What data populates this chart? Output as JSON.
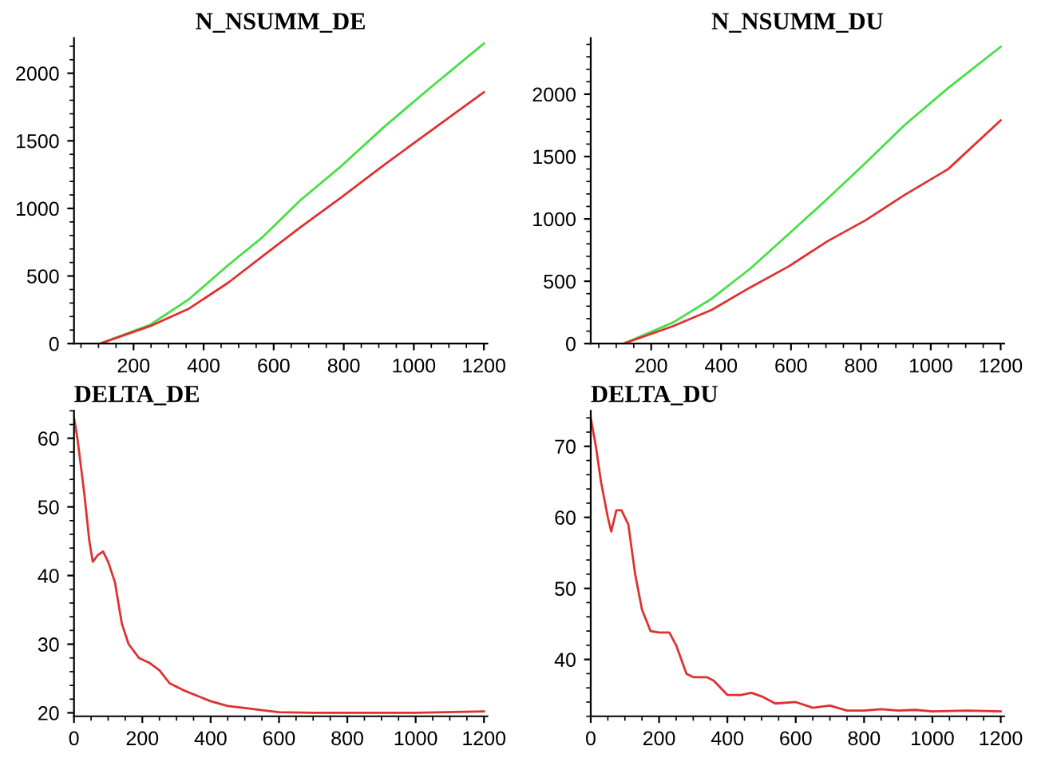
{
  "chart_data": [
    {
      "type": "line",
      "title": "N_NSUMM_DE",
      "xlim": [
        30,
        1210
      ],
      "ylim": [
        0,
        2260
      ],
      "xticks": [
        200,
        400,
        600,
        800,
        1000,
        1200
      ],
      "yticks": [
        0,
        500,
        1000,
        1500,
        2000
      ],
      "grid": false,
      "legend": false,
      "x": [
        105,
        248,
        359,
        470,
        565,
        676,
        787,
        914,
        1041,
        1200
      ],
      "series": [
        {
          "color": "#44e044",
          "values": [
            0,
            140,
            330,
            580,
            780,
            1060,
            1300,
            1600,
            1880,
            2220
          ]
        },
        {
          "color": "#e03030",
          "values": [
            0,
            130,
            260,
            450,
            640,
            860,
            1070,
            1320,
            1560,
            1860
          ]
        }
      ]
    },
    {
      "type": "line",
      "title": "N_NSUMM_DU",
      "xlim": [
        27,
        1210
      ],
      "ylim": [
        0,
        2450
      ],
      "xticks": [
        200,
        400,
        600,
        800,
        1000,
        1200
      ],
      "yticks": [
        0,
        500,
        1000,
        1500,
        2000
      ],
      "grid": false,
      "legend": false,
      "x": [
        121,
        263,
        373,
        483,
        594,
        704,
        814,
        924,
        1050,
        1200
      ],
      "series": [
        {
          "color": "#44e044",
          "values": [
            0,
            170,
            360,
            600,
            880,
            1160,
            1450,
            1750,
            2050,
            2380
          ]
        },
        {
          "color": "#e03030",
          "values": [
            0,
            140,
            270,
            450,
            620,
            820,
            990,
            1190,
            1400,
            1790
          ]
        }
      ]
    },
    {
      "type": "line",
      "title": "DELTA_DE",
      "xlim": [
        0,
        1210
      ],
      "ylim": [
        19.5,
        64
      ],
      "xticks": [
        0,
        200,
        400,
        600,
        800,
        1000,
        1200
      ],
      "yticks": [
        20,
        30,
        40,
        50,
        60
      ],
      "grid": false,
      "legend": false,
      "x": [
        0,
        10,
        30,
        45,
        55,
        70,
        85,
        100,
        120,
        140,
        160,
        190,
        220,
        250,
        280,
        320,
        360,
        400,
        450,
        500,
        550,
        600,
        700,
        800,
        1000,
        1200
      ],
      "series": [
        {
          "color": "#e03030",
          "values": [
            63,
            60,
            52,
            45,
            42,
            43,
            43.5,
            42,
            39,
            33,
            30,
            28,
            27.3,
            26.2,
            24.3,
            23.3,
            22.5,
            21.7,
            21,
            20.7,
            20.4,
            20.1,
            20,
            20,
            20,
            20.2
          ]
        }
      ]
    },
    {
      "type": "line",
      "title": "DELTA_DU",
      "xlim": [
        0,
        1210
      ],
      "ylim": [
        32,
        75
      ],
      "xticks": [
        0,
        200,
        400,
        600,
        800,
        1000,
        1200
      ],
      "yticks": [
        40,
        50,
        60,
        70
      ],
      "grid": false,
      "legend": false,
      "x": [
        0,
        15,
        30,
        50,
        60,
        75,
        90,
        110,
        130,
        150,
        175,
        200,
        230,
        250,
        280,
        300,
        340,
        360,
        400,
        440,
        470,
        500,
        540,
        600,
        650,
        700,
        750,
        800,
        850,
        900,
        950,
        1000,
        1100,
        1200
      ],
      "series": [
        {
          "color": "#e03030",
          "values": [
            74,
            70,
            65,
            60,
            58,
            61,
            61,
            59,
            52,
            47,
            44,
            43.8,
            43.8,
            42,
            38,
            37.5,
            37.5,
            37,
            35,
            35,
            35.3,
            34.8,
            33.8,
            34,
            33.2,
            33.5,
            32.8,
            32.8,
            33,
            32.8,
            32.9,
            32.7,
            32.8,
            32.7
          ]
        }
      ]
    }
  ]
}
